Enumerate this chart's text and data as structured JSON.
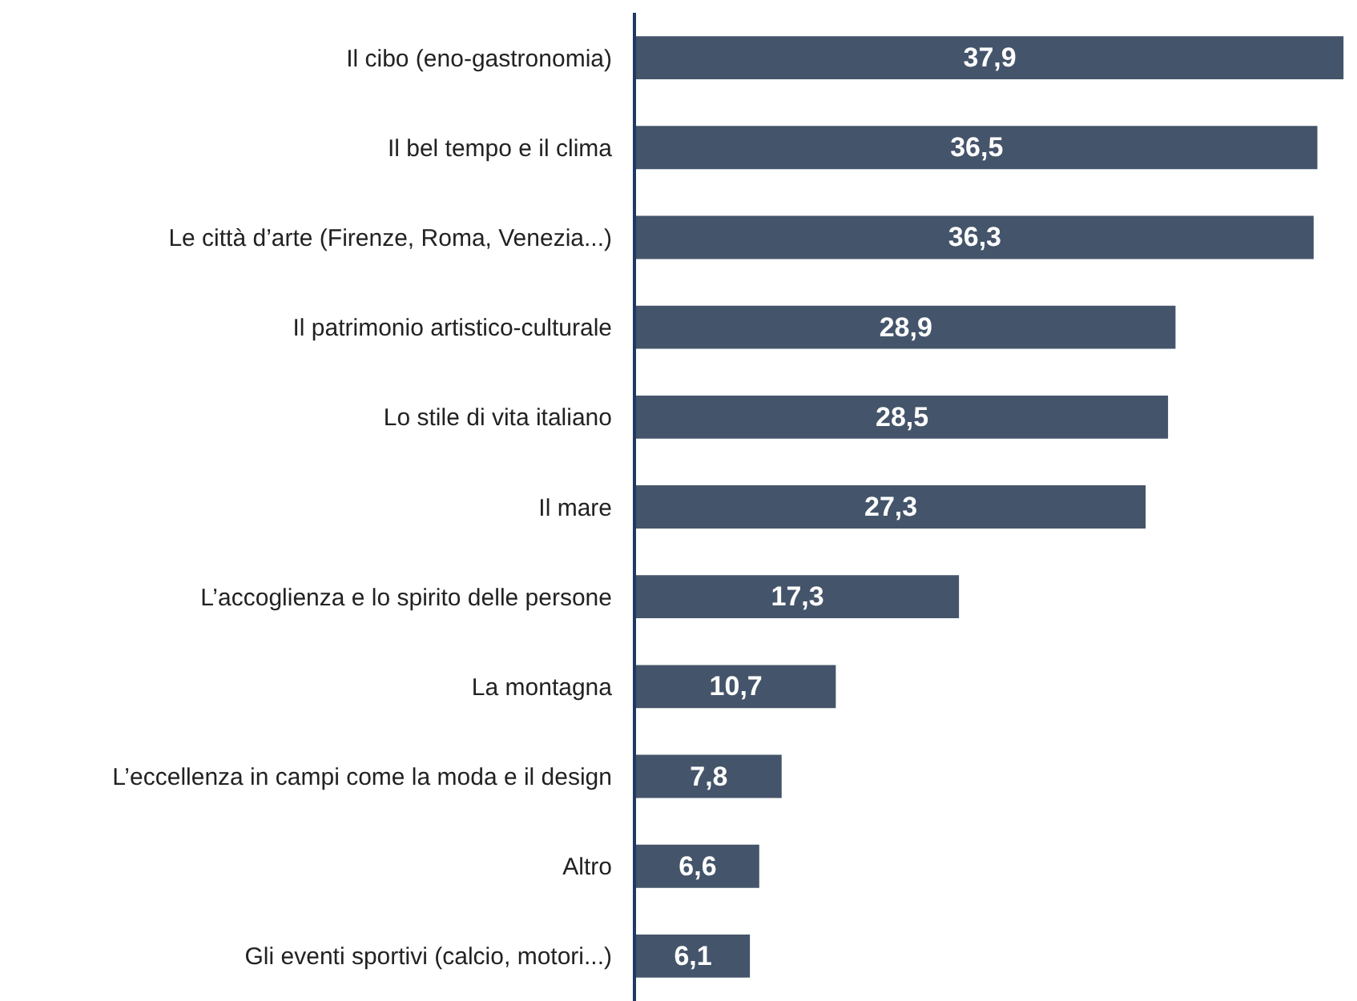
{
  "chart_data": {
    "type": "bar",
    "orientation": "horizontal",
    "categories": [
      "Il cibo (eno-gastronomia)",
      "Il bel tempo e il clima",
      "Le città d’arte (Firenze, Roma, Venezia...)",
      "Il patrimonio artistico-culturale",
      "Lo stile di vita italiano",
      "Il mare",
      "L’accoglienza e lo spirito delle persone",
      "La montagna",
      "L’eccellenza in campi come la moda e il design",
      "Altro",
      "Gli eventi sportivi (calcio, motori...)"
    ],
    "values": [
      37.9,
      36.5,
      36.3,
      28.9,
      28.5,
      27.3,
      17.3,
      10.7,
      7.8,
      6.6,
      6.1
    ],
    "value_labels": [
      "37,9",
      "36,5",
      "36,3",
      "28,9",
      "28,5",
      "27,3",
      "17,3",
      "10,7",
      "7,8",
      "6,6",
      "6,1"
    ],
    "color": "#44546a"
  }
}
